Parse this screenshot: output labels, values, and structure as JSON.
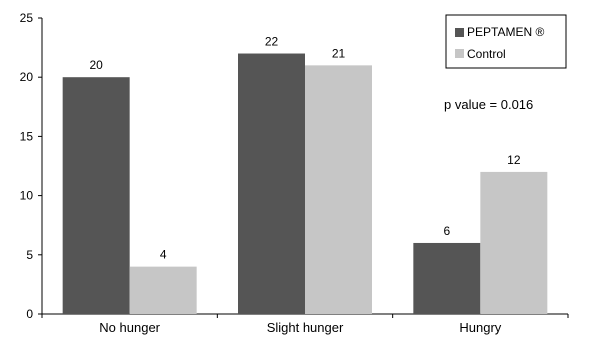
{
  "chart_data": {
    "type": "bar",
    "categories": [
      "No hunger",
      "Slight hunger",
      "Hungry"
    ],
    "series": [
      {
        "name": "PEPTAMEN ®",
        "values": [
          20,
          22,
          6
        ],
        "color": "#555555"
      },
      {
        "name": "Control",
        "values": [
          4,
          21,
          12
        ],
        "color": "#c6c6c6"
      }
    ],
    "ylim": [
      0,
      25
    ],
    "yticks": [
      0,
      5,
      10,
      15,
      20,
      25
    ],
    "grid": false,
    "legend": "top-right",
    "annotation": "p value = 0.016",
    "title": "",
    "xlabel": "",
    "ylabel": ""
  }
}
